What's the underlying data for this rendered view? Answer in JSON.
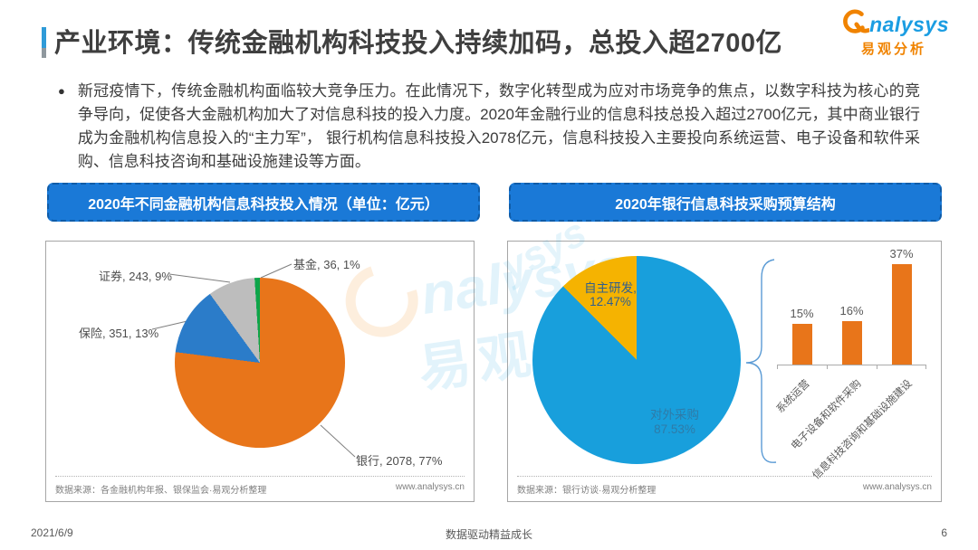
{
  "page": {
    "title": "产业环境：传统金融机构科技投入持续加码，总投入超2700亿",
    "bullet_text": "新冠疫情下，传统金融机构面临较大竞争压力。在此情况下，数字化转型成为应对市场竞争的焦点，以数字科技为核心的竞争导向，促使各大金融机构加大了对信息科技的投入力度。2020年金融行业的信息科技总投入超过2700亿元，其中商业银行成为金融机构信息投入的“主力军”， 银行机构信息科技投入2078亿元，信息科技投入主要投向系统运营、电子设备和软件采购、信息科技咨询和基础设施建设等方面。",
    "footer": {
      "date": "2021/6/9",
      "slogan": "数据驱动精益成长",
      "page_number": "6"
    }
  },
  "logo": {
    "brand_en": "nalysys",
    "brand_cn": "易观分析"
  },
  "watermark": {
    "en": "nalysys",
    "cn": "易观",
    "corner": "ysys"
  },
  "left_chart": {
    "banner": "2020年不同金融机构信息科技投入情况（单位：亿元）",
    "source": "数据来源：各金融机构年报、银保监会·易观分析整理",
    "website": "www.analysys.cn"
  },
  "right_chart": {
    "banner": "2020年银行信息科技采购预算结构",
    "source": "数据来源：银行访谈·易观分析整理",
    "website": "www.analysys.cn"
  },
  "chart_data": [
    {
      "type": "pie",
      "title": "2020年不同金融机构信息科技投入情况（单位：亿元）",
      "unit": "亿元",
      "start_angle_deg": 0,
      "direction": "clockwise",
      "slices": [
        {
          "label": "银行",
          "value": 2078,
          "pct": 77,
          "color": "#e8751a",
          "display": "银行, 2078, 77%"
        },
        {
          "label": "保险",
          "value": 351,
          "pct": 13,
          "color": "#2b7cc9",
          "display": "保险, 351, 13%"
        },
        {
          "label": "证券",
          "value": 243,
          "pct": 9,
          "color": "#bdbdbd",
          "display": "证券, 243, 9%"
        },
        {
          "label": "基金",
          "value": 36,
          "pct": 1,
          "color": "#0da54a",
          "display": "基金, 36, 1%"
        }
      ]
    },
    {
      "type": "pie",
      "title": "2020年银行信息科技采购预算结构",
      "start_angle_deg": 0,
      "direction": "clockwise",
      "slices": [
        {
          "label": "对外采购",
          "pct": 87.53,
          "color": "#189fdc",
          "display_label": "对外采购",
          "display_pct": "87.53%"
        },
        {
          "label": "自主研发",
          "pct": 12.47,
          "color": "#f5b301",
          "display_label": "自主研发,",
          "display_pct": "12.47%"
        }
      ]
    },
    {
      "type": "bar",
      "title": "对外采购结构",
      "categories": [
        "系统运营",
        "电子设备和软件采购",
        "信息科技咨询和基础设施建设"
      ],
      "values": [
        15,
        16,
        37
      ],
      "value_labels": [
        "15%",
        "16%",
        "37%"
      ],
      "unit": "%",
      "ylim": [
        0,
        45
      ],
      "bar_color": "#e8751a",
      "grid": false,
      "legend": "none"
    }
  ]
}
